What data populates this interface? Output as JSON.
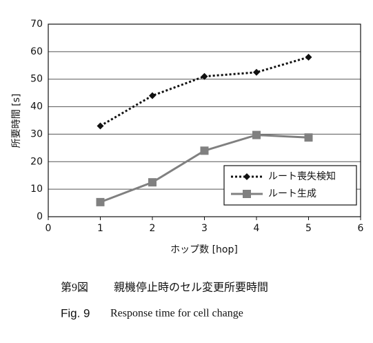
{
  "chart_data": {
    "type": "line",
    "x_label": "ホップ数 [hop]",
    "y_label": "所要時間 [s]",
    "x": [
      1,
      2,
      3,
      4,
      5
    ],
    "series": [
      {
        "name": "ルート喪失検知",
        "color": "#111111",
        "line_style": "dotted",
        "marker": "diamond",
        "values": [
          33,
          44,
          51,
          52.5,
          58
        ]
      },
      {
        "name": "ルート生成",
        "color": "#808080",
        "line_style": "solid",
        "marker": "square",
        "values": [
          5.3,
          12.5,
          24,
          29.7,
          28.8
        ]
      }
    ],
    "xlim": [
      0,
      6
    ],
    "xticks": [
      0,
      1,
      2,
      3,
      4,
      5,
      6
    ],
    "ylim": [
      0,
      70
    ],
    "yticks": [
      0,
      10,
      20,
      30,
      40,
      50,
      60,
      70
    ],
    "grid": true,
    "legend_position": "lower right"
  },
  "caption": {
    "label_jp": "第9図",
    "text_jp": "親機停止時のセル変更所要時間",
    "label_en": "Fig. 9",
    "text_en": "Response time for cell change"
  }
}
